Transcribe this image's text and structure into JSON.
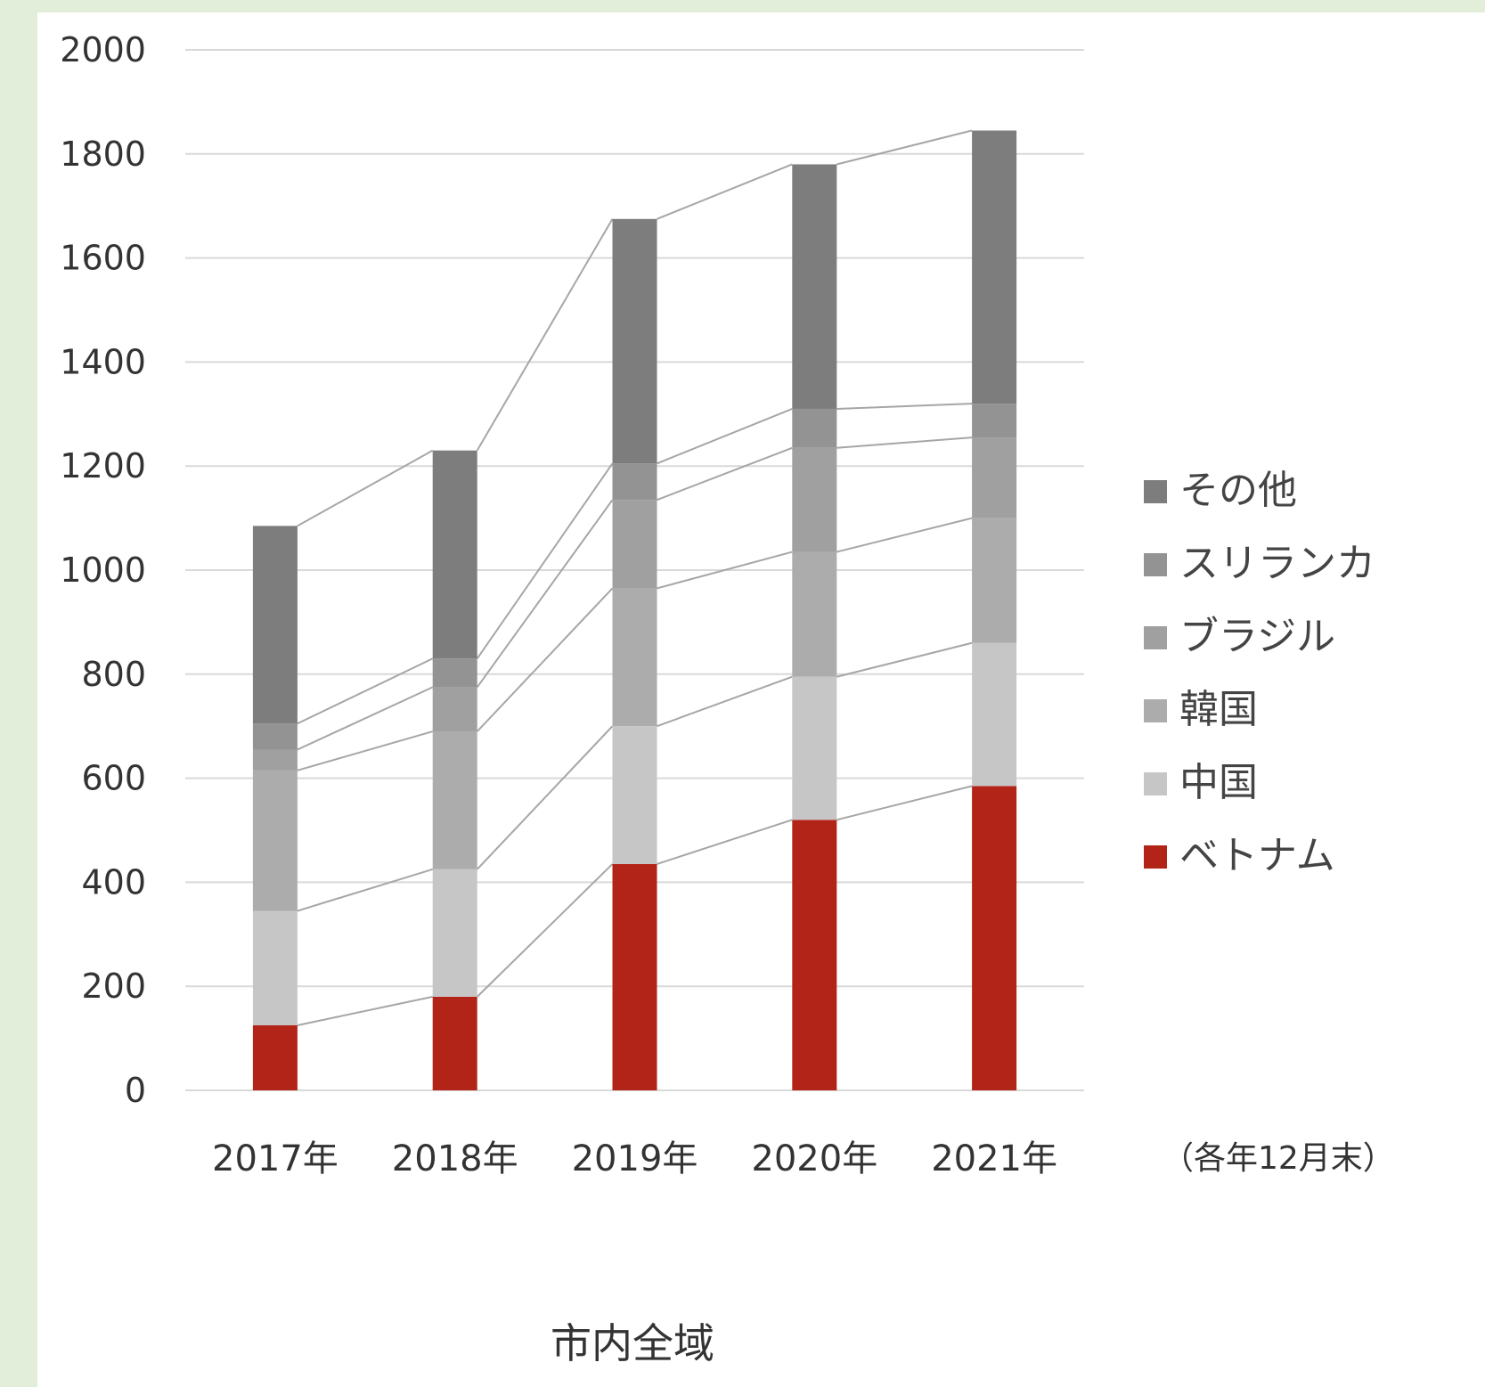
{
  "chart_data": {
    "type": "bar",
    "stacked": true,
    "categories": [
      "2017年",
      "2018年",
      "2019年",
      "2020年",
      "2021年"
    ],
    "series": [
      {
        "name": "ベトナム",
        "color": "#b22418",
        "values": [
          125,
          180,
          435,
          520,
          585
        ]
      },
      {
        "name": "中国",
        "color": "#c6c6c6",
        "values": [
          220,
          245,
          265,
          275,
          275
        ]
      },
      {
        "name": "韓国",
        "color": "#acacac",
        "values": [
          270,
          265,
          265,
          240,
          240
        ]
      },
      {
        "name": "ブラジル",
        "color": "#a0a0a0",
        "values": [
          40,
          85,
          170,
          200,
          155
        ]
      },
      {
        "name": "スリランカ",
        "color": "#939393",
        "values": [
          50,
          55,
          70,
          75,
          65
        ]
      },
      {
        "name": "その他",
        "color": "#7d7d7d",
        "values": [
          380,
          400,
          470,
          470,
          525
        ]
      }
    ],
    "ylim": [
      0,
      2000
    ],
    "yticks": [
      "0",
      "200",
      "400",
      "600",
      "800",
      "1000",
      "1200",
      "1400",
      "1600",
      "1800",
      "2000"
    ],
    "grid": true,
    "legend_position": "right",
    "note": "（各年12月末）",
    "caption": "市内全域"
  }
}
